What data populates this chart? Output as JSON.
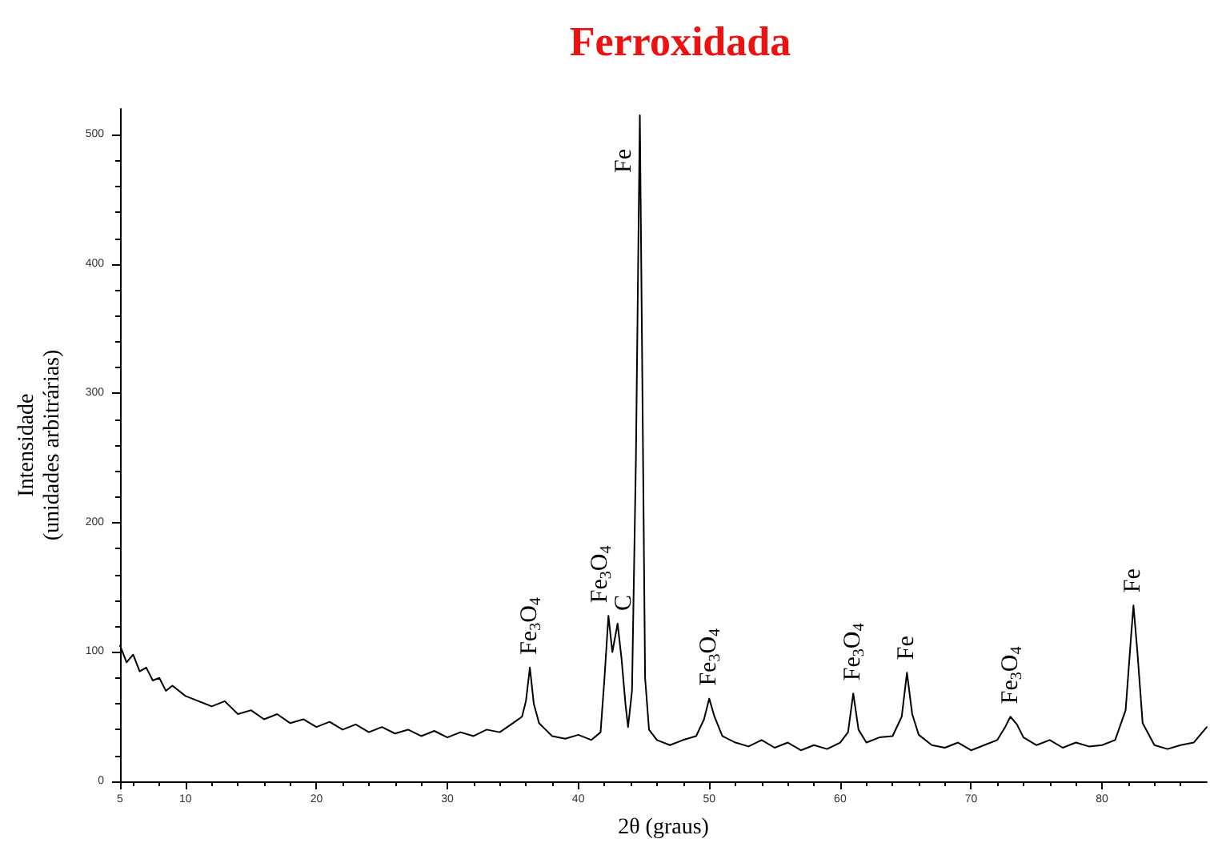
{
  "chart_data": {
    "type": "line",
    "title": "Ferroxidada",
    "xlabel": "2θ (graus)",
    "ylabel": "Intensidade\n(unidades arbitrárias)",
    "x": [
      5,
      5.5,
      6,
      6.5,
      7,
      7.5,
      8,
      8.5,
      9,
      10,
      11,
      12,
      13,
      14,
      15,
      16,
      17,
      18,
      19,
      20,
      21,
      22,
      23,
      24,
      25,
      26,
      27,
      28,
      29,
      30,
      31,
      32,
      33,
      34,
      35,
      35.7,
      36,
      36.3,
      36.6,
      37,
      37.5,
      38,
      39,
      40,
      41,
      41.7,
      42,
      42.3,
      42.6,
      43,
      43.3,
      43.6,
      43.8,
      44.1,
      44.4,
      44.7,
      44.9,
      45.1,
      45.4,
      46,
      47,
      48,
      49,
      49.6,
      50,
      50.4,
      51,
      52,
      53,
      54,
      55,
      56,
      57,
      58,
      59,
      60,
      60.6,
      61,
      61.4,
      62,
      63,
      64,
      64.7,
      65.1,
      65.5,
      66,
      67,
      68,
      69,
      70,
      71,
      72,
      72.6,
      73,
      73.5,
      74,
      75,
      76,
      77,
      78,
      79,
      80,
      81,
      81.8,
      82.2,
      82.4,
      82.7,
      83.1,
      84,
      85,
      86,
      87,
      88
    ],
    "series": [
      {
        "color": "#000000",
        "values": [
          105,
          92,
          98,
          85,
          88,
          78,
          80,
          70,
          74,
          66,
          62,
          58,
          62,
          52,
          55,
          48,
          52,
          45,
          48,
          42,
          46,
          40,
          44,
          38,
          42,
          37,
          40,
          35,
          39,
          34,
          38,
          35,
          40,
          38,
          45,
          50,
          62,
          88,
          60,
          45,
          40,
          35,
          33,
          36,
          32,
          38,
          80,
          128,
          100,
          122,
          95,
          60,
          42,
          70,
          250,
          515,
          300,
          80,
          40,
          32,
          28,
          32,
          35,
          48,
          64,
          50,
          35,
          30,
          27,
          32,
          26,
          30,
          24,
          28,
          25,
          30,
          38,
          68,
          40,
          30,
          34,
          35,
          50,
          84,
          52,
          36,
          28,
          26,
          30,
          24,
          28,
          32,
          42,
          50,
          44,
          34,
          28,
          32,
          26,
          30,
          27,
          28,
          32,
          55,
          110,
          136,
          100,
          45,
          28,
          25,
          28,
          30,
          42
        ]
      }
    ],
    "xlim": [
      5,
      88
    ],
    "xticks": [
      5,
      10,
      20,
      30,
      40,
      50,
      60,
      70,
      80
    ],
    "ylim": [
      0,
      520
    ],
    "yticks": [
      0,
      100,
      200,
      300,
      400,
      500
    ],
    "grid": false,
    "marker": "none",
    "line_style": "solid",
    "annotations": [
      {
        "text": "Fe$_{3}$O$_{4}$",
        "x": 36.3,
        "y": 88
      },
      {
        "text": "Fe$_{3}$O$_{4}$",
        "x": 42.3,
        "y": 128
      },
      {
        "text": "C",
        "x": 43,
        "y": 122
      },
      {
        "text": "Fe",
        "x": 44.7,
        "y": 515
      },
      {
        "text": "Fe$_{3}$O$_{4}$",
        "x": 50,
        "y": 64
      },
      {
        "text": "Fe$_{3}$O$_{4}$",
        "x": 61,
        "y": 68
      },
      {
        "text": "Fe",
        "x": 65.1,
        "y": 84
      },
      {
        "text": "Fe$_{3}$O$_{4}$",
        "x": 73,
        "y": 50
      },
      {
        "text": "Fe",
        "x": 82.4,
        "y": 136
      }
    ]
  }
}
